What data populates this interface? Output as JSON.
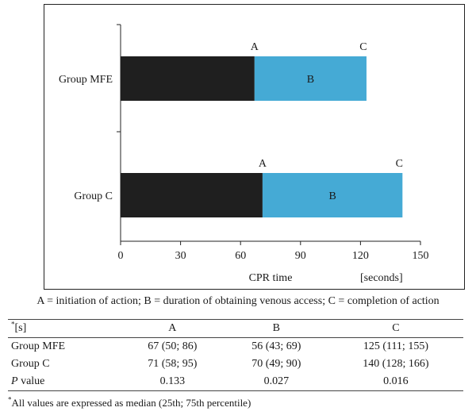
{
  "chart_data": {
    "type": "bar",
    "orientation": "horizontal",
    "stacked": true,
    "categories": [
      "Group MFE",
      "Group C"
    ],
    "series": [
      {
        "values": [
          67,
          71
        ],
        "color": "#1f1f1f"
      },
      {
        "name": "B",
        "values": [
          56,
          70
        ],
        "color": "#45aad5"
      }
    ],
    "bar_labels": {
      "start": "A",
      "middle": "B",
      "end": "C"
    },
    "xticks": [
      0,
      30,
      60,
      90,
      120,
      150
    ],
    "xlim": [
      0,
      150
    ],
    "xlabel": "CPR time",
    "xunit": "[seconds]",
    "grid": false
  },
  "legend_note": "A = initiation of action; B = duration of obtaining venous access; C = completion of action",
  "table": {
    "corner_sup": "*",
    "corner": "[s]",
    "headers": [
      "A",
      "B",
      "C"
    ],
    "rows": [
      {
        "label": "Group MFE",
        "cells": [
          "67 (50; 86)",
          "56 (43; 69)",
          "125 (111; 155)"
        ]
      },
      {
        "label": "Group C",
        "cells": [
          "71 (58; 95)",
          "70 (49; 90)",
          "140 (128; 166)"
        ]
      }
    ],
    "pvalue": {
      "label_italic": "P",
      "label_rest": " value",
      "cells": [
        "0.133",
        "0.027",
        "0.016"
      ]
    }
  },
  "footnote": {
    "sup": "*",
    "text": "All values are expressed as median (25th; 75th percentile)"
  }
}
